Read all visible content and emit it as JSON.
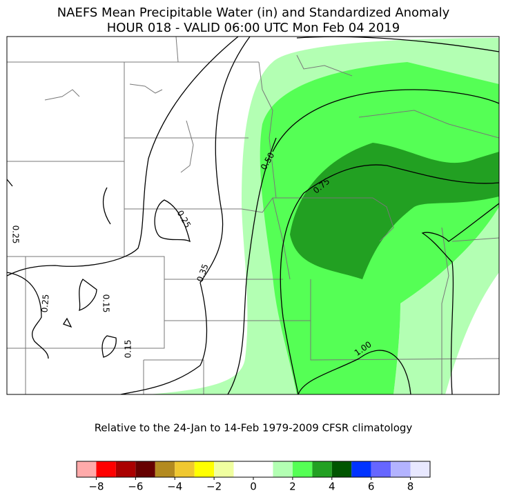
{
  "title": "NAEFS Mean Precipitable Water (in) and Standardized Anomaly",
  "subtitle": "HOUR 018 - VALID 06:00 UTC Mon Feb 04 2019",
  "contour_labels": [
    "0.50",
    "0.75",
    "0.25",
    "0.25",
    "0.35",
    "0.25",
    "0.15",
    "0.15",
    "1.00"
  ],
  "note": "Relative to the 24-Jan to 14-Feb 1979-2009 CFSR climatology",
  "colorbar": {
    "lim": [
      -9,
      9
    ],
    "bounds": [
      -9,
      -8,
      -7,
      -6,
      -5,
      -4,
      -3,
      -2,
      -1,
      1,
      2,
      3,
      4,
      5,
      6,
      7,
      8,
      9
    ],
    "colors": [
      "#ffaaaa",
      "#ff0000",
      "#aa0000",
      "#660000",
      "#b38a20",
      "#f0c830",
      "#ffff00",
      "#f0ffa0",
      "#ffffff",
      "#b3ffb3",
      "#55ff55",
      "#22a022",
      "#005500",
      "#0033ff",
      "#6666ff",
      "#b3b3ff",
      "#e8e8ff"
    ],
    "ticks": [
      {
        "value": -8,
        "label": "−8"
      },
      {
        "value": -6,
        "label": "−6"
      },
      {
        "value": -4,
        "label": "−4"
      },
      {
        "value": -2,
        "label": "−2"
      },
      0,
      2,
      4,
      6,
      8
    ]
  }
}
